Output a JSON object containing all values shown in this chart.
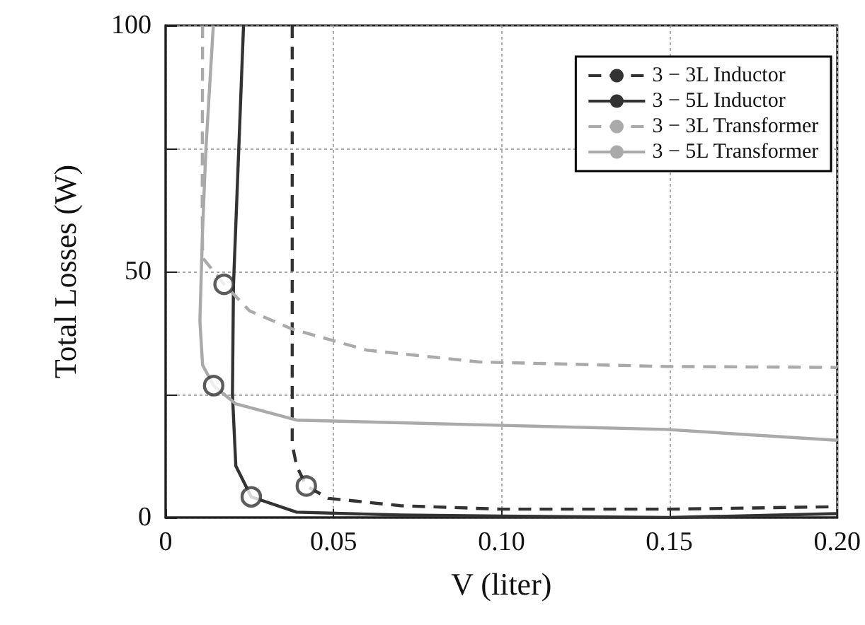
{
  "chart_data": {
    "type": "line",
    "xlabel": "V (liter)",
    "ylabel": "Total Losses (W)",
    "xlim": [
      0,
      0.2
    ],
    "xticks": [
      0,
      0.05,
      {
        "value": 0.1,
        "label": "0.10"
      },
      0.15,
      {
        "value": 0.2,
        "label": "0.20"
      }
    ],
    "ylim": [
      0,
      100
    ],
    "yticks": [
      0,
      {
        "value": 25,
        "label": null
      },
      50,
      {
        "value": 75,
        "label": null
      },
      100
    ],
    "grid": true,
    "legend": "top right",
    "marker": "none",
    "series": [
      {
        "name": "3 − 3L Inductor",
        "color": "#333333",
        "line_style": "dashed",
        "x": [
          0.0377,
          0.0377,
          0.0377,
          0.039,
          0.0419,
          0.0485,
          0.07,
          0.1,
          0.15,
          0.2
        ],
        "values": [
          100,
          50,
          14.9,
          10.5,
          6.4,
          3.9,
          2.4,
          1.7,
          1.7,
          2.2
        ]
      },
      {
        "name": "3 − 5L Inductor",
        "color": "#333333",
        "line_style": "solid",
        "x": [
          0.0232,
          0.0215,
          0.0202,
          0.0199,
          0.0209,
          0.0255,
          0.039,
          0.07,
          0.1,
          0.15,
          0.2
        ],
        "values": [
          100,
          70,
          47.2,
          25,
          10.5,
          4.2,
          1.1,
          0.5,
          0.3,
          0,
          0.8
        ]
      },
      {
        "name": "3 − 3L Transformer",
        "color": "#aaaaaa",
        "line_style": "dashed",
        "x": [
          0.011,
          0.0109,
          0.011,
          0.0174,
          0.025,
          0.0377,
          0.06,
          0.0938,
          0.149,
          0.2
        ],
        "values": [
          100,
          63,
          52.8,
          47.4,
          42,
          38.3,
          34,
          31.6,
          30.7,
          30.5
        ]
      },
      {
        "name": "3 − 5L Transformer",
        "color": "#aaaaaa",
        "line_style": "solid",
        "x": [
          0.0142,
          0.012,
          0.011,
          0.0102,
          0.011,
          0.0143,
          0.0209,
          0.039,
          0.102,
          0.149,
          0.2
        ],
        "values": [
          100,
          75,
          58.5,
          40,
          31,
          26.8,
          23.1,
          19.8,
          18.7,
          17.9,
          15.7
        ]
      },
      {
        "type": "scatter",
        "marker": "circle",
        "color": "#333333",
        "x": [
          0.0419,
          0.0255,
          0.0174,
          0.0143
        ],
        "values": [
          6.4,
          4.2,
          47.4,
          26.8
        ]
      }
    ]
  }
}
